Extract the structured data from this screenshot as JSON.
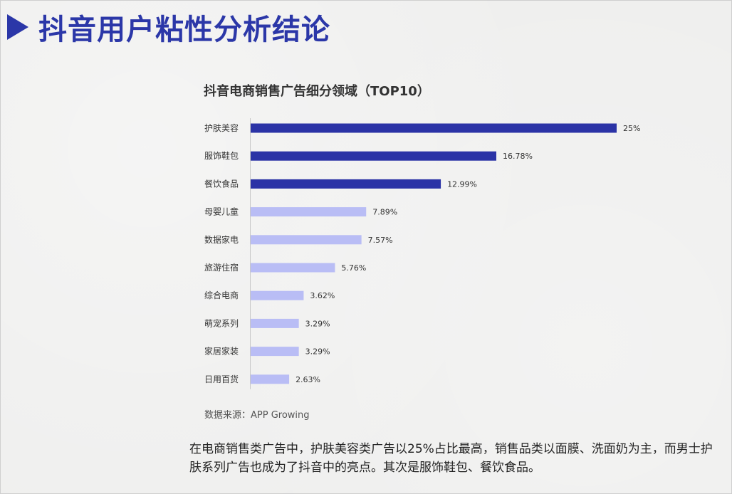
{
  "page_title": "抖音用户粘性分析结论",
  "source": "数据来源：APP Growing",
  "conclusion": "在电商销售类广告中，护肤美容类广告以25%占比最高，销售品类以面膜、洗面奶为主，而男士护肤系列广告也成为了抖音中的亮点。其次是服饰鞋包、餐饮食品。",
  "colors": {
    "accent": "#2b37a8",
    "bar_top": "#2b33a6",
    "bar_rest": "#b9bdf5"
  },
  "chart_data": {
    "type": "bar",
    "orientation": "horizontal",
    "title": "抖音电商销售广告细分领域（TOP10）",
    "categories": [
      "护肤美容",
      "服饰鞋包",
      "餐饮食品",
      "母婴儿童",
      "数据家电",
      "旅游住宿",
      "综合电商",
      "萌宠系列",
      "家居家装",
      "日用百货"
    ],
    "values": [
      25,
      16.78,
      12.99,
      7.89,
      7.57,
      5.76,
      3.62,
      3.29,
      3.29,
      2.63
    ],
    "value_labels": [
      "25%",
      "16.78%",
      "12.99%",
      "7.89%",
      "7.57%",
      "5.76%",
      "3.62%",
      "3.29%",
      "3.29%",
      "2.63%"
    ],
    "highlighted_top": 3,
    "xlabel": "",
    "ylabel": "",
    "xlim": [
      0,
      25
    ],
    "grid": false,
    "legend": "none"
  }
}
